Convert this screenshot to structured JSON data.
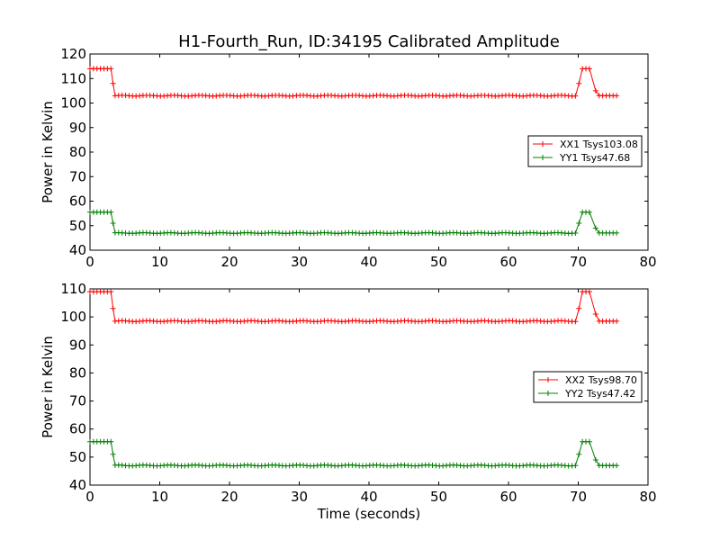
{
  "figure": {
    "title": "H1-Fourth_Run, ID:34195 Calibrated Amplitude",
    "xlabel": "Time (seconds)"
  },
  "chart_data": [
    {
      "type": "line",
      "ylabel": "Power in Kelvin",
      "xlim": [
        0,
        80
      ],
      "ylim": [
        40,
        120
      ],
      "xticks": [
        0,
        10,
        20,
        30,
        40,
        50,
        60,
        70,
        80
      ],
      "yticks": [
        40,
        50,
        60,
        70,
        80,
        90,
        100,
        110,
        120
      ],
      "legend_position": "center-right",
      "series": [
        {
          "name": "XX1 Tsys103.08",
          "color": "#ff0000",
          "marker": "plus",
          "segments": [
            {
              "x_start": 0.0,
              "x_end": 3.0,
              "y": 114
            },
            {
              "x_start": 3.6,
              "x_end": 69.6,
              "y": 103
            },
            {
              "x_start": 70.6,
              "x_end": 72.0,
              "y": 114
            },
            {
              "x_start": 73.0,
              "x_end": 75.8,
              "y": 103
            }
          ],
          "transition_points": [
            [
              3.3,
              108
            ],
            [
              70.1,
              108
            ],
            [
              72.5,
              105
            ]
          ]
        },
        {
          "name": "YY1 Tsys47.68",
          "color": "#008000",
          "marker": "plus",
          "segments": [
            {
              "x_start": 0.0,
              "x_end": 3.0,
              "y": 55.5
            },
            {
              "x_start": 3.6,
              "x_end": 69.6,
              "y": 47
            },
            {
              "x_start": 70.6,
              "x_end": 72.0,
              "y": 55.5
            },
            {
              "x_start": 73.0,
              "x_end": 75.8,
              "y": 47
            }
          ],
          "transition_points": [
            [
              3.3,
              51
            ],
            [
              70.1,
              51
            ],
            [
              72.5,
              49
            ]
          ]
        }
      ]
    },
    {
      "type": "line",
      "ylabel": "Power in Kelvin",
      "xlim": [
        0,
        80
      ],
      "ylim": [
        40,
        110
      ],
      "xticks": [
        0,
        10,
        20,
        30,
        40,
        50,
        60,
        70,
        80
      ],
      "yticks": [
        40,
        50,
        60,
        70,
        80,
        90,
        100,
        110
      ],
      "legend_position": "center-right",
      "series": [
        {
          "name": "XX2 Tsys98.70",
          "color": "#ff0000",
          "marker": "plus",
          "segments": [
            {
              "x_start": 0.0,
              "x_end": 3.0,
              "y": 109
            },
            {
              "x_start": 3.6,
              "x_end": 69.6,
              "y": 98.5
            },
            {
              "x_start": 70.6,
              "x_end": 72.0,
              "y": 109
            },
            {
              "x_start": 73.0,
              "x_end": 75.8,
              "y": 98.5
            }
          ],
          "transition_points": [
            [
              3.3,
              103
            ],
            [
              70.1,
              103
            ],
            [
              72.5,
              101
            ]
          ]
        },
        {
          "name": "YY2 Tsys47.42",
          "color": "#008000",
          "marker": "plus",
          "segments": [
            {
              "x_start": 0.0,
              "x_end": 3.0,
              "y": 55.5
            },
            {
              "x_start": 3.6,
              "x_end": 69.6,
              "y": 47
            },
            {
              "x_start": 70.6,
              "x_end": 72.0,
              "y": 55.5
            },
            {
              "x_start": 73.0,
              "x_end": 75.8,
              "y": 47
            }
          ],
          "transition_points": [
            [
              3.3,
              51
            ],
            [
              70.1,
              51
            ],
            [
              72.5,
              49
            ]
          ]
        }
      ]
    }
  ]
}
